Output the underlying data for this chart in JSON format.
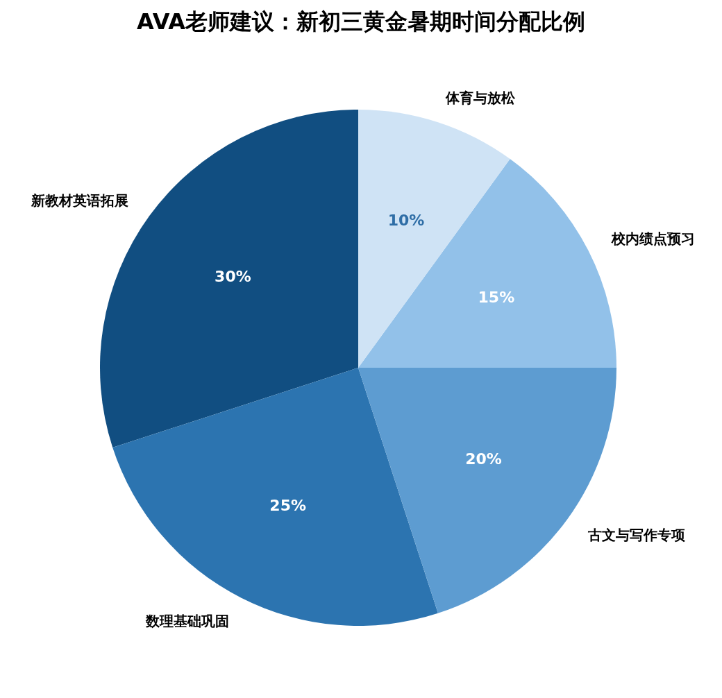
{
  "chart_data": {
    "type": "pie",
    "title": "AVA老师建议：新初三黄金暑期时间分配比例",
    "categories": [
      "新教材英语拓展",
      "数理基础巩固",
      "古文与写作专项",
      "校内绩点预习",
      "体育与放松"
    ],
    "values": [
      30,
      25,
      20,
      15,
      10
    ],
    "colors": [
      "#114e81",
      "#2c74b0",
      "#5d9cd1",
      "#92c1e9",
      "#cfe3f5"
    ],
    "value_labels": [
      "30%",
      "25%",
      "20%",
      "15%",
      "10%"
    ],
    "legend": false
  }
}
